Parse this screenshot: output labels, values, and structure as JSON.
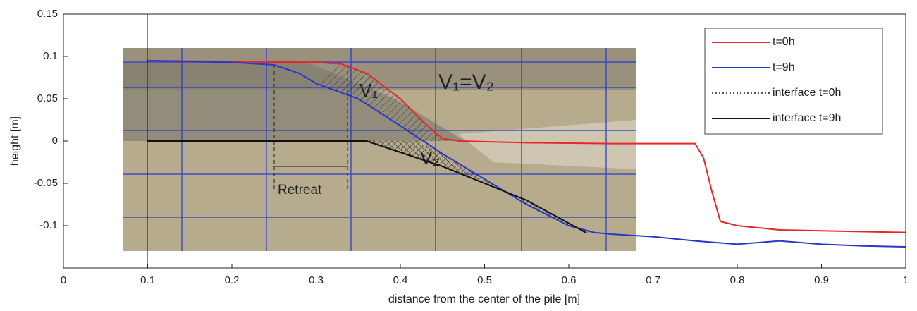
{
  "chart_data": {
    "type": "line",
    "xlabel": "distance from the center of the pile [m]",
    "ylabel": "height [m]",
    "xlim": [
      0,
      1
    ],
    "ylim": [
      -0.15,
      0.15
    ],
    "xticks": [
      0,
      0.1,
      0.2,
      0.3,
      0.4,
      0.5,
      0.6,
      0.7,
      0.8,
      0.9,
      1
    ],
    "yticks": [
      0.15,
      0.1,
      0.05,
      0,
      -0.05,
      -0.1
    ],
    "legend_position": "upper right",
    "series": [
      {
        "name": "t=0h",
        "color": "#e8262a",
        "style": "solid",
        "x": [
          0.1,
          0.2,
          0.3,
          0.33,
          0.36,
          0.4,
          0.43,
          0.45,
          0.47,
          0.55,
          0.65,
          0.75,
          0.76,
          0.77,
          0.78,
          0.8,
          0.85,
          0.9,
          1.0
        ],
        "values": [
          0.095,
          0.094,
          0.093,
          0.091,
          0.08,
          0.05,
          0.02,
          0.003,
          0,
          -0.002,
          -0.003,
          -0.003,
          -0.02,
          -0.06,
          -0.095,
          -0.1,
          -0.105,
          -0.106,
          -0.108
        ]
      },
      {
        "name": "t=9h",
        "color": "#2b35c8",
        "style": "solid",
        "x": [
          0.1,
          0.2,
          0.25,
          0.28,
          0.3,
          0.35,
          0.4,
          0.45,
          0.5,
          0.55,
          0.6,
          0.63,
          0.65,
          0.7,
          0.75,
          0.8,
          0.85,
          0.9,
          0.95,
          1.0
        ],
        "values": [
          0.095,
          0.093,
          0.09,
          0.08,
          0.068,
          0.05,
          0.018,
          -0.015,
          -0.045,
          -0.075,
          -0.1,
          -0.108,
          -0.11,
          -0.113,
          -0.118,
          -0.122,
          -0.118,
          -0.122,
          -0.124,
          -0.125
        ]
      },
      {
        "name": "interface t=0h",
        "color": "#555555",
        "style": "dotted",
        "x": [
          0.1,
          0.37
        ],
        "values": [
          0,
          0
        ]
      },
      {
        "name": "interface t=9h",
        "color": "#111111",
        "style": "solid",
        "x": [
          0.1,
          0.36,
          0.45,
          0.55,
          0.62
        ],
        "values": [
          0,
          0,
          -0.03,
          -0.07,
          -0.108
        ]
      }
    ],
    "annotations": [
      "V₁",
      "V₂",
      "V₁=V₂",
      "Retreat"
    ]
  }
}
